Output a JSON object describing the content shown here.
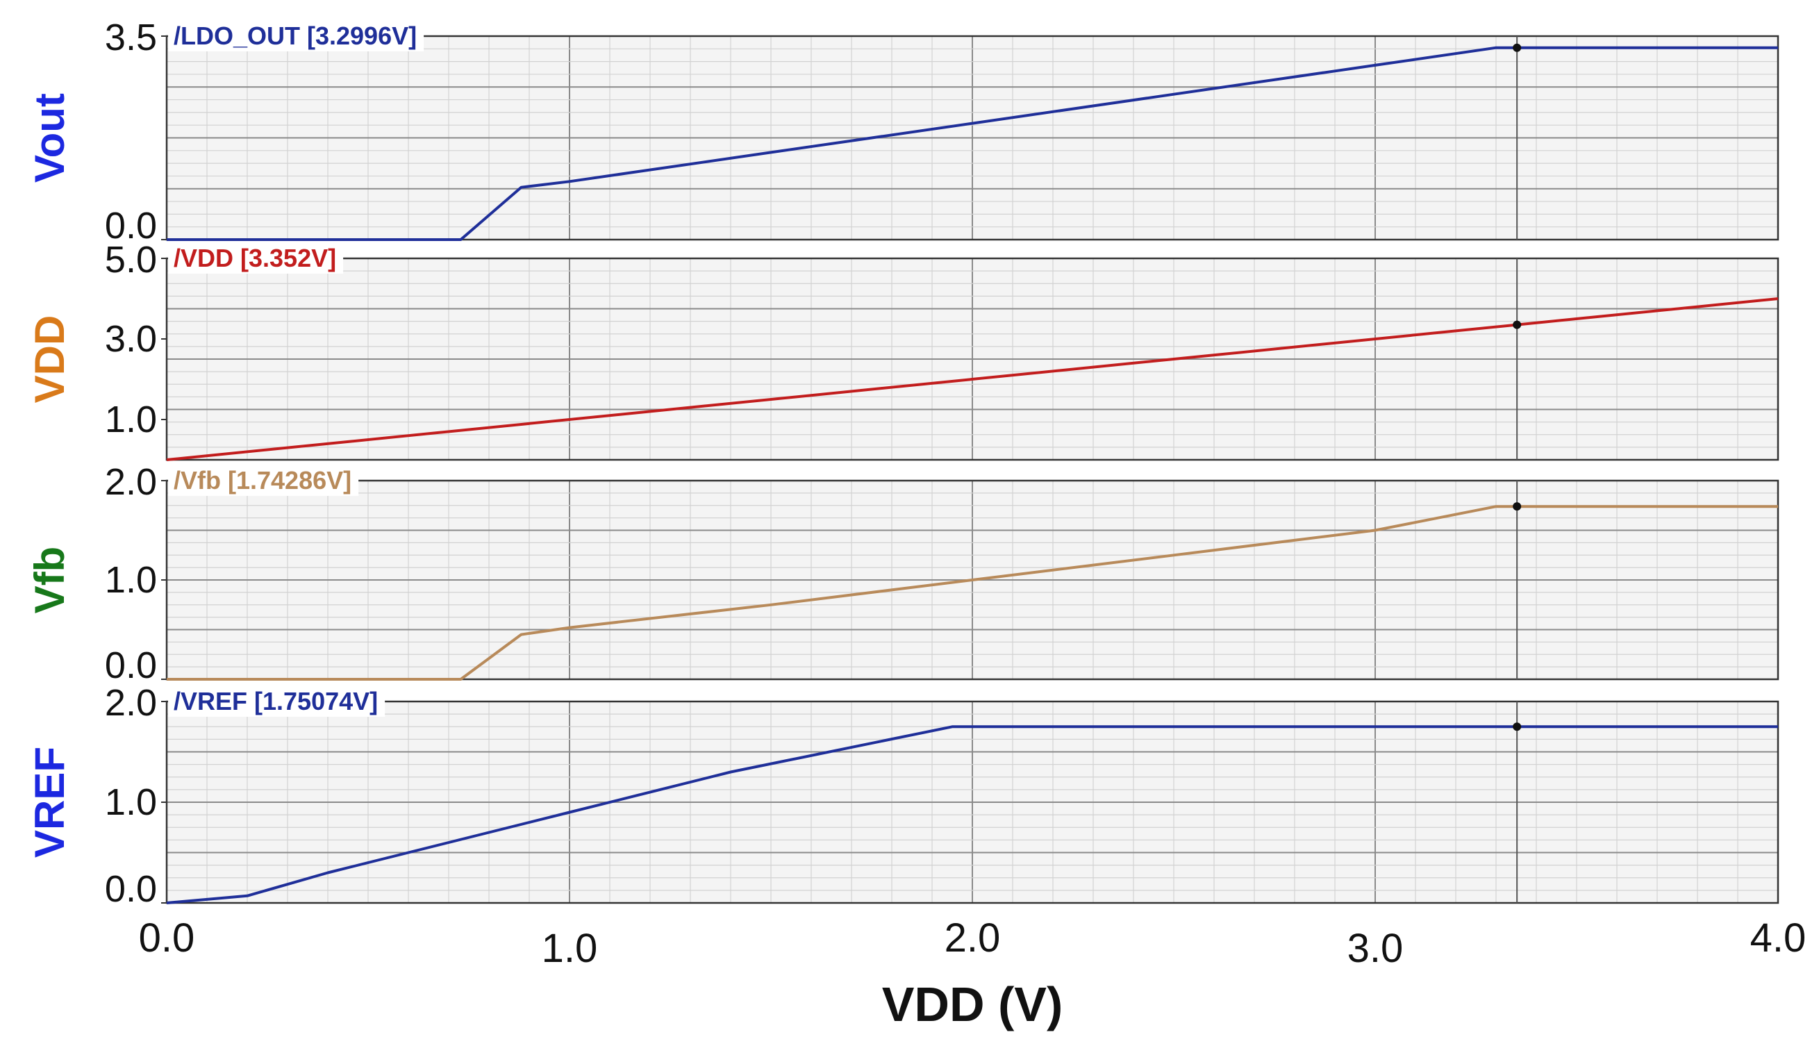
{
  "chart_data": {
    "type": "line",
    "xlabel": "VDD (V)",
    "xlim": [
      0,
      4.0
    ],
    "x_ticks": [
      "0.0",
      "1.0",
      "2.0",
      "3.0",
      "4.0"
    ],
    "cursor_x": 3.352,
    "panels": [
      {
        "ylabel": "Vout",
        "ylabel_color": "#1c28e0",
        "ylim": [
          0,
          3.5
        ],
        "y_ticks": [
          "0.0",
          "3.5"
        ],
        "y_tick_values": [
          0.0,
          3.5
        ],
        "series": [
          {
            "name": "/LDO_OUT [3.2996V]",
            "color": "#1f2f99",
            "x": [
              0,
              0.73,
              0.88,
              1.0,
              1.5,
              2.0,
              2.5,
              3.0,
              3.3,
              4.0
            ],
            "y": [
              0,
              0,
              0.9,
              1.0,
              1.5,
              2.0,
              2.5,
              3.0,
              3.3,
              3.3
            ]
          }
        ]
      },
      {
        "ylabel": "VDD",
        "ylabel_color": "#d97a1a",
        "ylim": [
          0,
          5.0
        ],
        "y_ticks": [
          "1.0",
          "3.0",
          "5.0"
        ],
        "y_tick_values": [
          1.0,
          3.0,
          5.0
        ],
        "series": [
          {
            "name": "/VDD [3.352V]",
            "color": "#c21d1d",
            "x": [
              0,
              4.0
            ],
            "y": [
              0,
              4.0
            ]
          }
        ]
      },
      {
        "ylabel": "Vfb",
        "ylabel_color": "#17781a",
        "ylim": [
          0,
          2.0
        ],
        "y_ticks": [
          "0.0",
          "1.0",
          "2.0"
        ],
        "y_tick_values": [
          0.0,
          1.0,
          2.0
        ],
        "series": [
          {
            "name": "/Vfb [1.74286V]",
            "color": "#b88a5a",
            "x": [
              0,
              0.73,
              0.88,
              1.0,
              1.5,
              2.0,
              2.5,
              3.0,
              3.3,
              4.0
            ],
            "y": [
              0,
              0,
              0.45,
              0.52,
              0.75,
              1.0,
              1.25,
              1.5,
              1.74,
              1.74
            ]
          }
        ]
      },
      {
        "ylabel": "VREF",
        "ylabel_color": "#1c28e0",
        "ylim": [
          0,
          2.0
        ],
        "y_ticks": [
          "0.0",
          "1.0",
          "2.0"
        ],
        "y_tick_values": [
          0.0,
          1.0,
          2.0
        ],
        "series": [
          {
            "name": "/VREF [1.75074V]",
            "color": "#1f2f99",
            "x": [
              0,
              0.2,
              0.4,
              1.0,
              1.4,
              1.95,
              4.0
            ],
            "y": [
              0,
              0.07,
              0.3,
              0.9,
              1.3,
              1.75,
              1.75
            ]
          }
        ]
      }
    ]
  }
}
